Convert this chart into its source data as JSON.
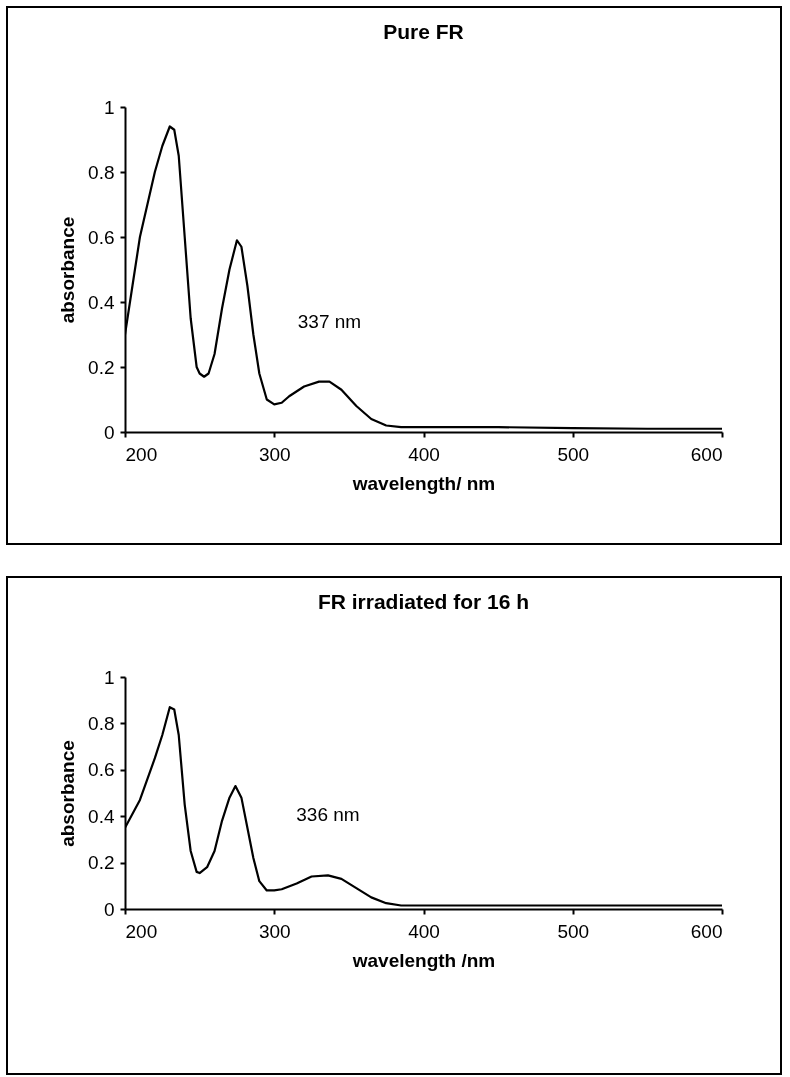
{
  "chart_data": [
    {
      "type": "line",
      "title": "Pure FR",
      "xlabel": "wavelength/ nm",
      "ylabel": "absorbance",
      "xlim": [
        200,
        600
      ],
      "ylim": [
        0,
        1
      ],
      "xticks": [
        200,
        300,
        400,
        500,
        600
      ],
      "yticks": [
        0,
        0.2,
        0.4,
        0.6,
        0.8,
        1
      ],
      "grid": false,
      "annotations": [
        {
          "text": "337 nm",
          "x": 337,
          "y": 0.155
        }
      ],
      "x": [
        200,
        205,
        210,
        215,
        220,
        225,
        230,
        233,
        236,
        240,
        244,
        248,
        250,
        253,
        256,
        260,
        265,
        270,
        275,
        278,
        282,
        286,
        290,
        295,
        300,
        305,
        310,
        320,
        330,
        337,
        345,
        355,
        365,
        375,
        385,
        400,
        450,
        500,
        550,
        600
      ],
      "series": [
        {
          "color": "#000000",
          "values": [
            0.3,
            0.45,
            0.6,
            0.7,
            0.8,
            0.88,
            0.94,
            0.93,
            0.85,
            0.6,
            0.35,
            0.2,
            0.18,
            0.17,
            0.18,
            0.24,
            0.38,
            0.5,
            0.59,
            0.57,
            0.45,
            0.3,
            0.18,
            0.1,
            0.085,
            0.09,
            0.11,
            0.14,
            0.155,
            0.155,
            0.13,
            0.08,
            0.04,
            0.02,
            0.015,
            0.015,
            0.015,
            0.012,
            0.01,
            0.01
          ]
        }
      ]
    },
    {
      "type": "line",
      "title": "FR irradiated for 16 h",
      "xlabel": "wavelength /nm",
      "ylabel": "absorbance",
      "xlim": [
        200,
        600
      ],
      "ylim": [
        0,
        1
      ],
      "xticks": [
        200,
        300,
        400,
        500,
        600
      ],
      "yticks": [
        0,
        0.2,
        0.4,
        0.6,
        0.8,
        1
      ],
      "grid": false,
      "annotations": [
        {
          "text": "336 nm",
          "x": 336,
          "y": 0.145
        }
      ],
      "x": [
        200,
        210,
        220,
        225,
        230,
        233,
        236,
        240,
        244,
        248,
        250,
        255,
        260,
        265,
        270,
        274,
        278,
        282,
        286,
        290,
        295,
        300,
        305,
        315,
        325,
        336,
        345,
        355,
        365,
        375,
        385,
        400,
        500,
        600
      ],
      "series": [
        {
          "color": "#000000",
          "values": [
            0.35,
            0.47,
            0.65,
            0.75,
            0.87,
            0.86,
            0.75,
            0.45,
            0.25,
            0.16,
            0.155,
            0.18,
            0.25,
            0.38,
            0.48,
            0.53,
            0.48,
            0.35,
            0.22,
            0.12,
            0.08,
            0.08,
            0.085,
            0.11,
            0.14,
            0.145,
            0.13,
            0.09,
            0.05,
            0.025,
            0.015,
            0.015,
            0.015,
            0.015
          ]
        }
      ]
    }
  ]
}
